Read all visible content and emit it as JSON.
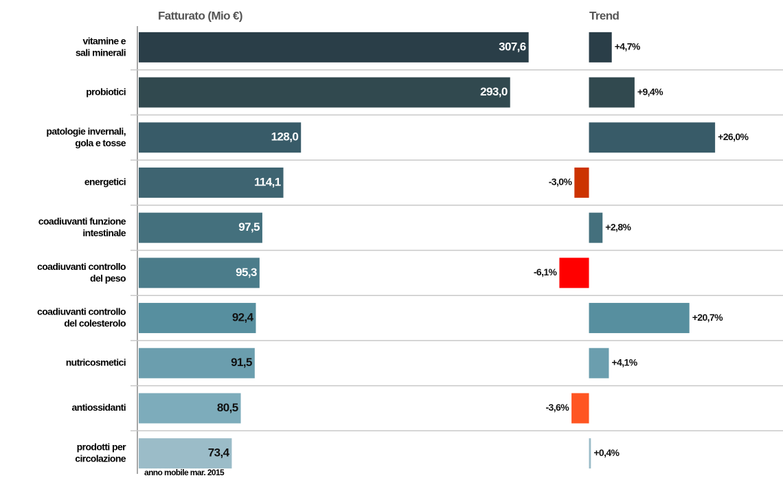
{
  "chart_data": [
    {
      "type": "hbar",
      "axis_label": "Fatturato (Mio €)",
      "note": "anno mobile mar. 2015",
      "categories": [
        "vitamine e\nsali minerali",
        "probiotici",
        "patologie invernali,\ngola e tosse",
        "energetici",
        "coadiuvanti funzione\nintestinale",
        "coadiuvanti controllo\ndel peso",
        "coadiuvanti controllo\ndel colesterolo",
        "nutricosmetici",
        "antiossidanti",
        "prodotti per\ncircolazione"
      ],
      "values": [
        307.6,
        293.0,
        128.0,
        114.1,
        97.5,
        95.3,
        92.4,
        91.5,
        80.5,
        73.4
      ],
      "value_labels": [
        "307,6",
        "293,0",
        "128,0",
        "114,1",
        "97,5",
        "95,3",
        "92,4",
        "91,5",
        "80,5",
        "73,4"
      ],
      "colors": [
        "#2a3e48",
        "#31494f",
        "#385b68",
        "#3e6471",
        "#44707d",
        "#4b7c8a",
        "#578f9f",
        "#6b9eae",
        "#7dacbb",
        "#9bbcc8"
      ],
      "xlim": [
        0,
        330
      ]
    },
    {
      "type": "hbar",
      "axis_label": "Trend",
      "values": [
        4.7,
        9.4,
        26.0,
        -3.0,
        2.8,
        -6.1,
        20.7,
        4.1,
        -3.6,
        0.4
      ],
      "value_labels": [
        "+4,7%",
        "+9,4%",
        "+26,0%",
        "-3,0%",
        "+2,8%",
        "-6,1%",
        "+20,7%",
        "+4,1%",
        "-3,6%",
        "+0,4%"
      ],
      "colors": [
        "#2a3e48",
        "#31494f",
        "#385b68",
        "#cc3300",
        "#44707d",
        "#ff0000",
        "#578f9f",
        "#6b9eae",
        "#ff5522",
        "#9bbcc8"
      ],
      "xlim": [
        -8,
        40
      ]
    }
  ]
}
